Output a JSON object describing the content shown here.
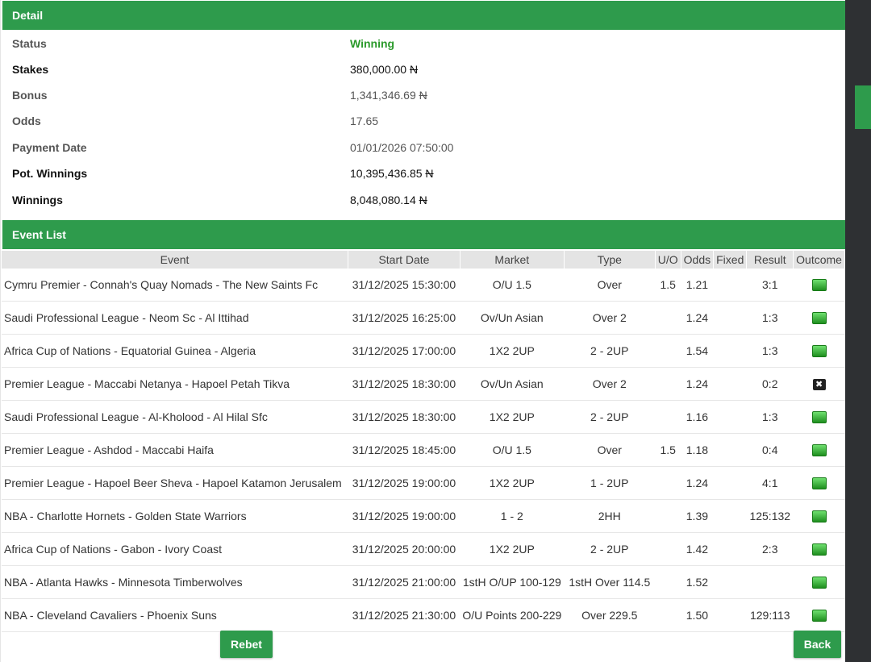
{
  "detail": {
    "title": "Detail",
    "rows": [
      {
        "label": "Status",
        "value": "Winning"
      },
      {
        "label": "Stakes",
        "value": "380,000.00",
        "currency": "N"
      },
      {
        "label": "Bonus",
        "value": "1,341,346.69",
        "currency": "N"
      },
      {
        "label": "Odds",
        "value": "17.65"
      },
      {
        "label": "Payment Date",
        "value": "01/01/2026 07:50:00"
      },
      {
        "label": "Pot. Winnings",
        "value": "10,395,436.85",
        "currency": "N"
      },
      {
        "label": "Winnings",
        "value": "8,048,080.14",
        "currency": "N"
      }
    ]
  },
  "events": {
    "title": "Event List",
    "columns": [
      "Event",
      "Start Date",
      "Market",
      "Type",
      "U/O",
      "Odds",
      "Fixed",
      "Result",
      "Outcome"
    ],
    "rows": [
      {
        "event": "Cymru Premier - Connah's Quay Nomads - The New Saints Fc",
        "start": "31/12/2025 15:30:00",
        "market": "O/U 1.5",
        "type": "Over",
        "uo": "1.5",
        "odds": "1.21",
        "fixed": "",
        "result": "3:1",
        "outcome": "won-icon"
      },
      {
        "event": "Saudi Professional League - Neom Sc - Al Ittihad",
        "start": "31/12/2025 16:25:00",
        "market": "Ov/Un Asian",
        "type": "Over 2",
        "uo": "",
        "odds": "1.24",
        "fixed": "",
        "result": "1:3",
        "outcome": "won-icon"
      },
      {
        "event": "Africa Cup of Nations - Equatorial Guinea - Algeria",
        "start": "31/12/2025 17:00:00",
        "market": "1X2 2UP",
        "type": "2 - 2UP",
        "uo": "",
        "odds": "1.54",
        "fixed": "",
        "result": "1:3",
        "outcome": "won-icon"
      },
      {
        "event": "Premier League - Maccabi Netanya - Hapoel Petah Tikva",
        "start": "31/12/2025 18:30:00",
        "market": "Ov/Un Asian",
        "type": "Over 2",
        "uo": "",
        "odds": "1.24",
        "fixed": "",
        "result": "0:2",
        "outcome": "lost-icon"
      },
      {
        "event": "Saudi Professional League - Al-Kholood - Al Hilal Sfc",
        "start": "31/12/2025 18:30:00",
        "market": "1X2 2UP",
        "type": "2 - 2UP",
        "uo": "",
        "odds": "1.16",
        "fixed": "",
        "result": "1:3",
        "outcome": "won-icon"
      },
      {
        "event": "Premier League - Ashdod - Maccabi Haifa",
        "start": "31/12/2025 18:45:00",
        "market": "O/U 1.5",
        "type": "Over",
        "uo": "1.5",
        "odds": "1.18",
        "fixed": "",
        "result": "0:4",
        "outcome": "won-icon"
      },
      {
        "event": "Premier League - Hapoel Beer Sheva - Hapoel Katamon Jerusalem",
        "start": "31/12/2025 19:00:00",
        "market": "1X2 2UP",
        "type": "1 - 2UP",
        "uo": "",
        "odds": "1.24",
        "fixed": "",
        "result": "4:1",
        "outcome": "won-icon"
      },
      {
        "event": "NBA - Charlotte Hornets - Golden State Warriors",
        "start": "31/12/2025 19:00:00",
        "market": "1 - 2",
        "type": "2HH",
        "uo": "",
        "odds": "1.39",
        "fixed": "",
        "result": "125:132",
        "outcome": "won-icon"
      },
      {
        "event": "Africa Cup of Nations - Gabon - Ivory Coast",
        "start": "31/12/2025 20:00:00",
        "market": "1X2 2UP",
        "type": "2 - 2UP",
        "uo": "",
        "odds": "1.42",
        "fixed": "",
        "result": "2:3",
        "outcome": "won-icon"
      },
      {
        "event": "NBA - Atlanta Hawks - Minnesota Timberwolves",
        "start": "31/12/2025 21:00:00",
        "market": "1stH O/UP 100-129",
        "type": "1stH Over 114.5",
        "uo": "",
        "odds": "1.52",
        "fixed": "",
        "result": "",
        "outcome": "won-icon"
      },
      {
        "event": "NBA - Cleveland Cavaliers - Phoenix Suns",
        "start": "31/12/2025 21:30:00",
        "market": "O/U Points 200-229",
        "type": "Over 229.5",
        "uo": "",
        "odds": "1.50",
        "fixed": "",
        "result": "129:113",
        "outcome": "won-icon"
      }
    ]
  },
  "buttons": {
    "rebet": "Rebet",
    "back": "Back"
  },
  "colors": {
    "header_bg": "#2e9b4c",
    "status_win": "#2b9a2b",
    "table_header_bg": "#e4e4e4",
    "sidebar_bg": "#2e3033"
  }
}
